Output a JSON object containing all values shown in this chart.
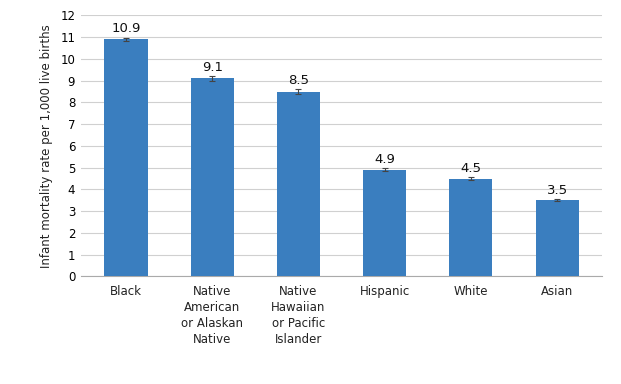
{
  "categories": [
    "Black",
    "Native\nAmerican\nor Alaskan\nNative",
    "Native\nHawaiian\nor Pacific\nIslander",
    "Hispanic",
    "White",
    "Asian"
  ],
  "values": [
    10.9,
    9.1,
    8.5,
    4.9,
    4.5,
    3.5
  ],
  "bar_color": "#3a7ebf",
  "ylabel": "Infant mortality rate per 1,000 live births",
  "ylim": [
    0,
    12
  ],
  "yticks": [
    0,
    1,
    2,
    3,
    4,
    5,
    6,
    7,
    8,
    9,
    10,
    11,
    12
  ],
  "bar_width": 0.5,
  "tick_fontsize": 8.5,
  "ylabel_fontsize": 8.5,
  "value_label_fontsize": 9.5,
  "background_color": "#ffffff",
  "grid_color": "#d0d0d0",
  "error_bar_values": [
    0.08,
    0.12,
    0.1,
    0.07,
    0.06,
    0.05
  ]
}
